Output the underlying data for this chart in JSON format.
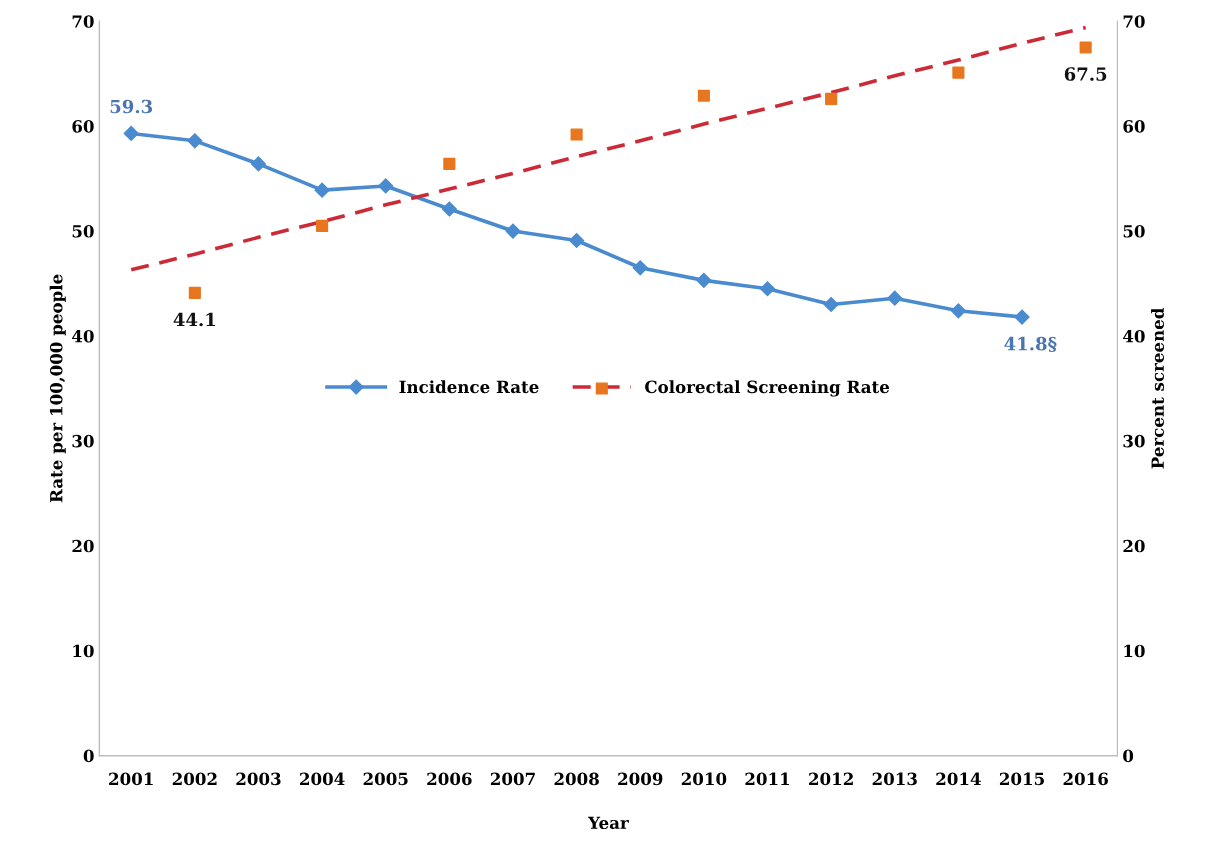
{
  "chart_data": {
    "type": "line",
    "xlabel": "Year",
    "ylabel": "Rate per 100,000 people",
    "y2label": "Percent screened",
    "categories": [
      "2001",
      "2002",
      "2003",
      "2004",
      "2005",
      "2006",
      "2007",
      "2008",
      "2009",
      "2010",
      "2011",
      "2012",
      "2013",
      "2014",
      "2015",
      "2016"
    ],
    "series": [
      {
        "name": "Incidence Rate",
        "color": "#4a8bd0",
        "marker": "diamond",
        "line_style": "solid",
        "values": [
          59.3,
          58.6,
          56.4,
          53.9,
          54.3,
          52.1,
          50.0,
          49.1,
          46.5,
          45.3,
          44.5,
          43.0,
          43.6,
          42.4,
          41.8,
          null
        ],
        "value_labels": [
          "59.3",
          null,
          null,
          null,
          null,
          null,
          null,
          null,
          null,
          null,
          null,
          null,
          null,
          null,
          "41.8§",
          null
        ]
      },
      {
        "name": "Colorectal Screening Rate",
        "type": "scatter",
        "axis": "y2",
        "color": "#e8761e",
        "marker": "square",
        "values": [
          null,
          44.1,
          null,
          50.5,
          null,
          56.4,
          null,
          59.2,
          null,
          62.9,
          null,
          62.6,
          null,
          65.1,
          null,
          67.5
        ],
        "value_labels": [
          null,
          "44.1",
          null,
          null,
          null,
          null,
          null,
          null,
          null,
          null,
          null,
          null,
          null,
          null,
          null,
          "67.5"
        ]
      },
      {
        "type": "line",
        "axis": "y2",
        "color": "#cc2a36",
        "marker": "none",
        "line_style": "dashed",
        "values": [
          46.3,
          47.8,
          49.4,
          50.9,
          52.5,
          54.0,
          55.5,
          57.1,
          58.6,
          60.2,
          61.7,
          63.2,
          64.8,
          66.3,
          67.9,
          69.4
        ]
      }
    ],
    "ylim": [
      0,
      70
    ],
    "yticks": [
      0,
      10,
      20,
      30,
      40,
      50,
      60,
      70
    ],
    "y2lim": [
      0,
      70
    ],
    "y2ticks": [
      0,
      10,
      20,
      30,
      40,
      50,
      60,
      70
    ],
    "grid": false,
    "legend": "center"
  }
}
